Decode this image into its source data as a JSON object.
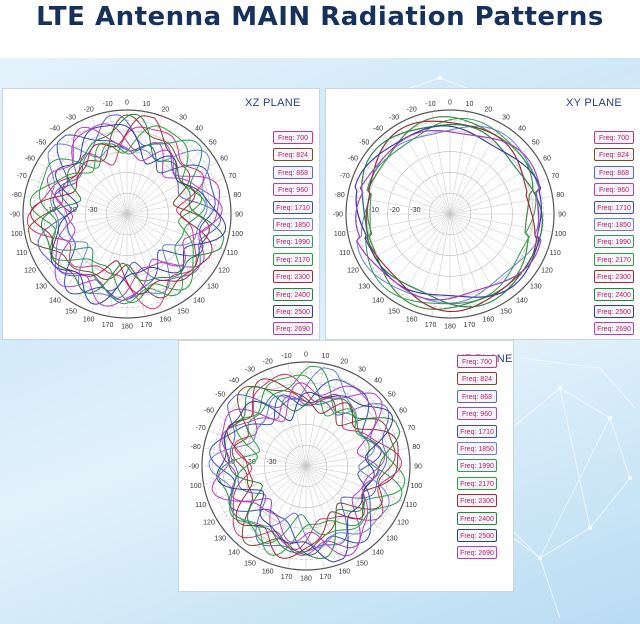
{
  "title": "LTE Antenna MAIN Radiation Patterns",
  "chart_data": [
    {
      "type": "polar",
      "plane": "XZ PLANE",
      "angle_tick_labels": [
        "0",
        "10",
        "20",
        "30",
        "40",
        "50",
        "60",
        "70",
        "80",
        "90",
        "100",
        "110",
        "120",
        "130",
        "140",
        "150",
        "160",
        "170",
        "180",
        "170",
        "160",
        "150",
        "140",
        "130",
        "120",
        "110",
        "100",
        "-90",
        "-80",
        "-70",
        "-60",
        "-50",
        "-40",
        "-30",
        "-20",
        "-10"
      ],
      "radial_tick_labels": [
        "-10",
        "-20",
        "-30"
      ],
      "legend": [
        "Freq: 700",
        "Freq: 824",
        "Freq: 868",
        "Freq: 960",
        "Freq: 1710",
        "Freq: 1850",
        "Freq: 1990",
        "Freq: 2170",
        "Freq: 2300",
        "Freq: 2400",
        "Freq: 2500",
        "Freq: 2690"
      ],
      "series_colors": [
        "#d4337a",
        "#7a4b2a",
        "#5b64c8",
        "#b43fc9",
        "#3d4fb5",
        "#6b7fd6",
        "#2f9a58",
        "#2aa136",
        "#a02a3a",
        "#1f8a3c",
        "#2e3e9c",
        "#b53fbf"
      ]
    },
    {
      "type": "polar",
      "plane": "XY PLANE",
      "angle_tick_labels": [
        "0",
        "10",
        "20",
        "30",
        "40",
        "50",
        "60",
        "70",
        "80",
        "90",
        "100",
        "110",
        "120",
        "130",
        "140",
        "150",
        "160",
        "170",
        "180",
        "170",
        "160",
        "150",
        "140",
        "130",
        "120",
        "110",
        "100",
        "-90",
        "-80",
        "-70",
        "-60",
        "-50",
        "-40",
        "-30",
        "-20",
        "-10"
      ],
      "radial_tick_labels": [
        "-10",
        "-20",
        "-30"
      ],
      "legend": [
        "Freq: 700",
        "Freq: 824",
        "Freq: 868",
        "Freq: 960",
        "Freq: 1710",
        "Freq: 1850",
        "Freq: 1990",
        "Freq: 2170",
        "Freq: 2300",
        "Freq: 2400",
        "Freq: 2500",
        "Freq: 2690"
      ],
      "series_colors": [
        "#d4337a",
        "#7a4b2a",
        "#5b64c8",
        "#b43fc9",
        "#3d4fb5",
        "#6b7fd6",
        "#2f9a58",
        "#2aa136",
        "#a02a3a",
        "#1f8a3c",
        "#2e3e9c",
        "#b53fbf"
      ]
    },
    {
      "type": "polar",
      "plane": "YZ PLANE",
      "angle_tick_labels": [
        "0",
        "10",
        "20",
        "30",
        "40",
        "50",
        "60",
        "70",
        "80",
        "90",
        "100",
        "110",
        "120",
        "130",
        "140",
        "150",
        "160",
        "170",
        "180",
        "170",
        "160",
        "150",
        "140",
        "130",
        "120",
        "110",
        "100",
        "-90",
        "-80",
        "-70",
        "-60",
        "-50",
        "-40",
        "-30",
        "-20",
        "-10"
      ],
      "radial_tick_labels": [
        "-10",
        "-20",
        "-30"
      ],
      "legend": [
        "Freq: 700",
        "Freq: 824",
        "Freq: 868",
        "Freq: 960",
        "Freq: 1710",
        "Freq: 1850",
        "Freq: 1990",
        "Freq: 2170",
        "Freq: 2300",
        "Freq: 2400",
        "Freq: 2500",
        "Freq: 2690"
      ],
      "series_colors": [
        "#d4337a",
        "#7a4b2a",
        "#5b64c8",
        "#b43fc9",
        "#3d4fb5",
        "#6b7fd6",
        "#2f9a58",
        "#2aa136",
        "#a02a3a",
        "#1f8a3c",
        "#2e3e9c",
        "#b53fbf"
      ]
    }
  ]
}
